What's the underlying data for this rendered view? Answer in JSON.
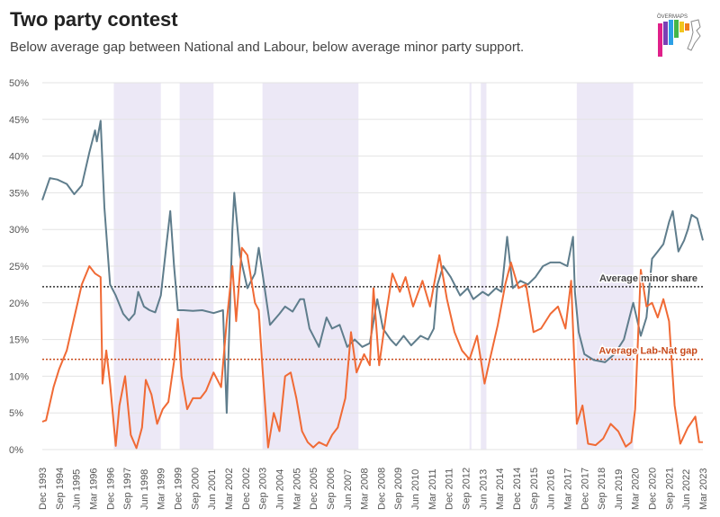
{
  "title": "Two party contest",
  "subtitle": "Below average gap between National and Labour, below average minor party support.",
  "logo_text": "ÖVERMAPS",
  "colors": {
    "minor": "#5f7d8c",
    "gap": "#f06a35",
    "gap_shaded": "#f49a78",
    "shade": "#ece8f6",
    "grid": "#e3e3e3",
    "avg_minor_line": "#333333",
    "avg_gap_line": "#c84a1b",
    "avg_gap_label": "#c84a1b"
  },
  "chart_data": {
    "type": "line",
    "title": "Two party contest",
    "subtitle": "Below average gap between National and Labour, below average minor party support.",
    "xlabel": "",
    "ylabel": "",
    "x_range": [
      "1993-12",
      "2023-03"
    ],
    "ylim": [
      0,
      50
    ],
    "y_ticks": [
      0,
      5,
      10,
      15,
      20,
      25,
      30,
      35,
      40,
      45,
      50
    ],
    "y_tick_labels": [
      "0%",
      "5%",
      "10%",
      "15%",
      "20%",
      "25%",
      "30%",
      "35%",
      "40%",
      "45%",
      "50%"
    ],
    "x_tick_labels": [
      "Dec 1993",
      "Sep 1994",
      "Jun 1995",
      "Mar 1996",
      "Dec 1996",
      "Sep 1997",
      "Jun 1998",
      "Mar 1999",
      "Dec 1999",
      "Sep 2000",
      "Jun 2001",
      "Mar 2002",
      "Dec 2002",
      "Sep 2003",
      "Jun 2004",
      "Mar 2005",
      "Dec 2005",
      "Sep 2006",
      "Jun 2007",
      "Mar 2008",
      "Dec 2008",
      "Sep 2009",
      "Jun 2010",
      "Mar 2011",
      "Dec 2011",
      "Sep 2012",
      "Jun 2013",
      "Mar 2014",
      "Dec 2014",
      "Sep 2015",
      "Jun 2016",
      "Mar 2017",
      "Dec 2017",
      "Sep 2018",
      "Jun 2019",
      "Mar 2020",
      "Dec 2020",
      "Sep 2021",
      "Jun 2022",
      "Mar 2023"
    ],
    "grid": true,
    "legend": "none",
    "shaded_periods": [
      [
        "1997-02",
        "1999-03"
      ],
      [
        "2000-01",
        "2001-07"
      ],
      [
        "2003-09",
        "2007-12"
      ],
      [
        "2012-11",
        "2012-12"
      ],
      [
        "2013-05",
        "2013-08"
      ],
      [
        "2017-08",
        "2020-02"
      ]
    ],
    "reference_lines": [
      {
        "name": "Average minor share",
        "value": 22.2
      },
      {
        "name": "Average Lab-Nat gap",
        "value": 12.3
      }
    ],
    "series": [
      {
        "points": [
          [
            "1993-12",
            34.0
          ],
          [
            "1994-04",
            37.0
          ],
          [
            "1994-08",
            36.8
          ],
          [
            "1995-01",
            36.2
          ],
          [
            "1995-05",
            34.8
          ],
          [
            "1995-09",
            36.0
          ],
          [
            "1996-01",
            40.5
          ],
          [
            "1996-04",
            43.5
          ],
          [
            "1996-05",
            42.0
          ],
          [
            "1996-07",
            44.8
          ],
          [
            "1996-09",
            33.0
          ],
          [
            "1996-12",
            22.5
          ],
          [
            "1997-03",
            21.0
          ],
          [
            "1997-07",
            18.5
          ],
          [
            "1997-10",
            17.6
          ],
          [
            "1998-01",
            18.5
          ],
          [
            "1998-03",
            21.5
          ],
          [
            "1998-06",
            19.5
          ],
          [
            "1998-09",
            19.0
          ],
          [
            "1998-12",
            18.7
          ],
          [
            "1999-03",
            21.0
          ],
          [
            "1999-06",
            28.0
          ],
          [
            "1999-08",
            32.5
          ],
          [
            "1999-10",
            25.0
          ],
          [
            "1999-12",
            19.0
          ],
          [
            "2000-03",
            19.0
          ],
          [
            "2000-08",
            18.9
          ],
          [
            "2001-01",
            19.0
          ],
          [
            "2001-07",
            18.6
          ],
          [
            "2001-12",
            19.0
          ],
          [
            "2002-02",
            5.0
          ],
          [
            "2002-05",
            30.0
          ],
          [
            "2002-06",
            35.0
          ],
          [
            "2002-09",
            26.5
          ],
          [
            "2003-01",
            22.0
          ],
          [
            "2003-05",
            24.0
          ],
          [
            "2003-07",
            27.5
          ],
          [
            "2003-09",
            24.0
          ],
          [
            "2004-01",
            17.0
          ],
          [
            "2004-06",
            18.5
          ],
          [
            "2004-09",
            19.5
          ],
          [
            "2005-01",
            18.8
          ],
          [
            "2005-05",
            20.5
          ],
          [
            "2005-07",
            20.5
          ],
          [
            "2005-10",
            16.5
          ],
          [
            "2006-03",
            14.0
          ],
          [
            "2006-07",
            18.0
          ],
          [
            "2006-10",
            16.5
          ],
          [
            "2007-02",
            17.0
          ],
          [
            "2007-06",
            14.0
          ],
          [
            "2007-10",
            15.0
          ],
          [
            "2008-02",
            14.0
          ],
          [
            "2008-06",
            14.5
          ],
          [
            "2008-10",
            20.5
          ],
          [
            "2009-01",
            16.5
          ],
          [
            "2009-05",
            15.0
          ],
          [
            "2009-08",
            14.2
          ],
          [
            "2009-12",
            15.5
          ],
          [
            "2010-04",
            14.2
          ],
          [
            "2010-09",
            15.5
          ],
          [
            "2011-01",
            15.0
          ],
          [
            "2011-04",
            16.5
          ],
          [
            "2011-06",
            22.5
          ],
          [
            "2011-09",
            25.0
          ],
          [
            "2012-01",
            23.5
          ],
          [
            "2012-06",
            21.0
          ],
          [
            "2012-10",
            22.0
          ],
          [
            "2013-01",
            20.5
          ],
          [
            "2013-06",
            21.5
          ],
          [
            "2013-09",
            21.0
          ],
          [
            "2014-01",
            22.0
          ],
          [
            "2014-04",
            21.5
          ],
          [
            "2014-07",
            29.0
          ],
          [
            "2014-10",
            22.0
          ],
          [
            "2015-02",
            23.0
          ],
          [
            "2015-06",
            22.5
          ],
          [
            "2015-10",
            23.5
          ],
          [
            "2016-02",
            25.0
          ],
          [
            "2016-06",
            25.5
          ],
          [
            "2016-11",
            25.5
          ],
          [
            "2017-03",
            25.0
          ],
          [
            "2017-06",
            29.0
          ],
          [
            "2017-07",
            21.5
          ],
          [
            "2017-09",
            16.0
          ],
          [
            "2017-12",
            13.0
          ],
          [
            "2018-05",
            12.2
          ],
          [
            "2018-11",
            11.9
          ],
          [
            "2019-04",
            13.0
          ],
          [
            "2019-09",
            15.0
          ],
          [
            "2019-12",
            18.0
          ],
          [
            "2020-02",
            20.0
          ],
          [
            "2020-06",
            15.5
          ],
          [
            "2020-09",
            18.0
          ],
          [
            "2020-12",
            26.0
          ],
          [
            "2021-03",
            27.0
          ],
          [
            "2021-06",
            28.0
          ],
          [
            "2021-09",
            31.0
          ],
          [
            "2021-11",
            32.5
          ],
          [
            "2022-02",
            27.0
          ],
          [
            "2022-05",
            28.5
          ],
          [
            "2022-07",
            30.0
          ],
          [
            "2022-09",
            32.0
          ],
          [
            "2022-12",
            31.5
          ],
          [
            "2023-03",
            28.5
          ]
        ]
      },
      {
        "points": [
          [
            "1993-12",
            3.8
          ],
          [
            "1994-02",
            4.0
          ],
          [
            "1994-06",
            8.5
          ],
          [
            "1994-09",
            11.0
          ],
          [
            "1995-01",
            13.5
          ],
          [
            "1995-05",
            18.0
          ],
          [
            "1995-09",
            22.5
          ],
          [
            "1996-01",
            25.0
          ],
          [
            "1996-04",
            24.0
          ],
          [
            "1996-07",
            23.5
          ],
          [
            "1996-08",
            9.0
          ],
          [
            "1996-10",
            13.5
          ],
          [
            "1996-12",
            9.0
          ],
          [
            "1997-03",
            0.5
          ],
          [
            "1997-05",
            6.0
          ],
          [
            "1997-08",
            10.0
          ],
          [
            "1997-11",
            2.0
          ],
          [
            "1998-02",
            0.2
          ],
          [
            "1998-05",
            3.0
          ],
          [
            "1998-07",
            9.5
          ],
          [
            "1998-10",
            7.5
          ],
          [
            "1999-01",
            3.5
          ],
          [
            "1999-04",
            5.5
          ],
          [
            "1999-07",
            6.5
          ],
          [
            "1999-10",
            12.0
          ],
          [
            "1999-12",
            17.8
          ],
          [
            "2000-02",
            10.0
          ],
          [
            "2000-05",
            5.5
          ],
          [
            "2000-08",
            7.0
          ],
          [
            "2000-12",
            7.0
          ],
          [
            "2001-03",
            8.0
          ],
          [
            "2001-07",
            10.5
          ],
          [
            "2001-11",
            8.5
          ],
          [
            "2002-02",
            17.5
          ],
          [
            "2002-05",
            25.0
          ],
          [
            "2002-07",
            17.5
          ],
          [
            "2002-10",
            27.5
          ],
          [
            "2003-01",
            26.5
          ],
          [
            "2003-05",
            20.0
          ],
          [
            "2003-07",
            19.0
          ],
          [
            "2003-09",
            11.0
          ],
          [
            "2003-12",
            0.3
          ],
          [
            "2004-03",
            5.0
          ],
          [
            "2004-06",
            2.5
          ],
          [
            "2004-09",
            10.0
          ],
          [
            "2004-12",
            10.5
          ],
          [
            "2005-03",
            7.0
          ],
          [
            "2005-06",
            2.5
          ],
          [
            "2005-09",
            1.0
          ],
          [
            "2005-12",
            0.3
          ],
          [
            "2006-03",
            1.0
          ],
          [
            "2006-07",
            0.5
          ],
          [
            "2006-10",
            2.0
          ],
          [
            "2007-01",
            3.0
          ],
          [
            "2007-05",
            7.0
          ],
          [
            "2007-08",
            16.0
          ],
          [
            "2007-11",
            10.5
          ],
          [
            "2008-03",
            13.0
          ],
          [
            "2008-06",
            11.5
          ],
          [
            "2008-08",
            22.0
          ],
          [
            "2008-11",
            11.5
          ],
          [
            "2009-03",
            19.0
          ],
          [
            "2009-06",
            24.0
          ],
          [
            "2009-10",
            21.5
          ],
          [
            "2010-01",
            23.5
          ],
          [
            "2010-05",
            19.5
          ],
          [
            "2010-10",
            23.0
          ],
          [
            "2011-02",
            19.5
          ],
          [
            "2011-07",
            26.5
          ],
          [
            "2011-11",
            20.5
          ],
          [
            "2012-03",
            16.0
          ],
          [
            "2012-07",
            13.5
          ],
          [
            "2012-11",
            12.3
          ],
          [
            "2013-03",
            15.5
          ],
          [
            "2013-07",
            9.0
          ],
          [
            "2013-10",
            12.5
          ],
          [
            "2014-02",
            17.0
          ],
          [
            "2014-06",
            22.5
          ],
          [
            "2014-09",
            25.5
          ],
          [
            "2015-01",
            22.0
          ],
          [
            "2015-05",
            22.5
          ],
          [
            "2015-09",
            16.0
          ],
          [
            "2016-01",
            16.5
          ],
          [
            "2016-06",
            18.5
          ],
          [
            "2016-10",
            19.5
          ],
          [
            "2017-02",
            16.5
          ],
          [
            "2017-05",
            23.0
          ],
          [
            "2017-08",
            3.5
          ],
          [
            "2017-11",
            6.0
          ],
          [
            "2018-02",
            0.8
          ],
          [
            "2018-06",
            0.6
          ],
          [
            "2018-10",
            1.5
          ],
          [
            "2019-02",
            3.5
          ],
          [
            "2019-06",
            2.5
          ],
          [
            "2019-10",
            0.4
          ],
          [
            "2020-01",
            1.0
          ],
          [
            "2020-03",
            5.5
          ],
          [
            "2020-06",
            24.5
          ],
          [
            "2020-09",
            19.5
          ],
          [
            "2020-12",
            20.0
          ],
          [
            "2021-03",
            18.0
          ],
          [
            "2021-06",
            20.5
          ],
          [
            "2021-09",
            17.5
          ],
          [
            "2021-12",
            6.0
          ],
          [
            "2022-03",
            0.8
          ],
          [
            "2022-07",
            3.0
          ],
          [
            "2022-11",
            4.5
          ],
          [
            "2023-01",
            1.0
          ],
          [
            "2023-03",
            1.0
          ]
        ]
      }
    ]
  }
}
